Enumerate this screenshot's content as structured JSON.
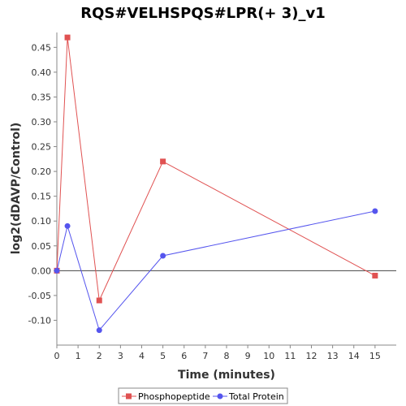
{
  "chart_data": {
    "type": "line",
    "title": "RQS#VELHSPQS#LPR(+ 3)_v1",
    "xlabel": "Time (minutes)",
    "ylabel": "log2(dDAVP/Control)",
    "xlim": [
      0,
      16
    ],
    "ylim": [
      -0.15,
      0.48
    ],
    "x_ticks": [
      "0",
      "1",
      "2",
      "3",
      "4",
      "5",
      "6",
      "7",
      "8",
      "9",
      "10",
      "11",
      "12",
      "13",
      "14",
      "15"
    ],
    "y_ticks": [
      "-0.10",
      "-0.05",
      "0.00",
      "0.05",
      "0.10",
      "0.15",
      "0.20",
      "0.25",
      "0.30",
      "0.35",
      "0.40",
      "0.45"
    ],
    "grid": false,
    "legend_position": "bottom",
    "series": [
      {
        "name": "Phosphopeptide",
        "color": "#e05252",
        "marker": "square",
        "x": [
          0,
          0.5,
          2,
          5,
          15
        ],
        "y": [
          0.0,
          0.47,
          -0.06,
          0.22,
          -0.01
        ]
      },
      {
        "name": "Total Protein",
        "color": "#5555ee",
        "marker": "circle",
        "x": [
          0,
          0.5,
          2,
          5,
          15
        ],
        "y": [
          0.0,
          0.09,
          -0.12,
          0.03,
          0.12
        ]
      }
    ]
  }
}
